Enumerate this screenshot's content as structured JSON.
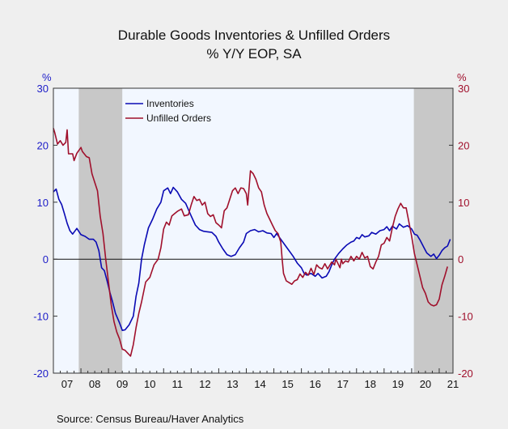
{
  "chart_data": {
    "type": "line",
    "title": "Durable Goods Inventories & Unfilled Orders",
    "subtitle": "% Y/Y   EOP, SA",
    "left_axis_unit": "%",
    "right_axis_unit": "%",
    "ylim": [
      -20,
      30
    ],
    "yticks": [
      30,
      20,
      10,
      0,
      -10,
      -20
    ],
    "xlim": [
      2007.0,
      2021.5
    ],
    "xtick_labels": [
      "07",
      "08",
      "09",
      "10",
      "11",
      "12",
      "13",
      "14",
      "15",
      "16",
      "17",
      "18",
      "19",
      "20",
      "21"
    ],
    "recessions": [
      [
        2007.92,
        2009.5
      ],
      [
        2020.08,
        2021.5
      ]
    ],
    "legend": {
      "position": "top-left",
      "entries": [
        "Inventories",
        "Unfilled Orders"
      ]
    },
    "source": "Source:  Census Bureau/Haver Analytics",
    "colors": {
      "Inventories": "#0a0ab4",
      "Unfilled Orders": "#a0102c",
      "recession": "#c8c8c8",
      "plot_bg": "#f2f7ff"
    },
    "series": [
      {
        "name": "Inventories",
        "points": [
          [
            2007.0,
            11.8
          ],
          [
            2007.1,
            12.3
          ],
          [
            2007.2,
            10.5
          ],
          [
            2007.3,
            9.6
          ],
          [
            2007.4,
            8.0
          ],
          [
            2007.5,
            6.3
          ],
          [
            2007.6,
            5.0
          ],
          [
            2007.7,
            4.4
          ],
          [
            2007.85,
            5.4
          ],
          [
            2008.0,
            4.3
          ],
          [
            2008.15,
            4.0
          ],
          [
            2008.3,
            3.5
          ],
          [
            2008.45,
            3.5
          ],
          [
            2008.55,
            3.0
          ],
          [
            2008.65,
            1.5
          ],
          [
            2008.75,
            -1.5
          ],
          [
            2008.85,
            -2.0
          ],
          [
            2008.95,
            -3.8
          ],
          [
            2009.05,
            -5.8
          ],
          [
            2009.15,
            -7.5
          ],
          [
            2009.25,
            -9.5
          ],
          [
            2009.4,
            -11.2
          ],
          [
            2009.5,
            -12.5
          ],
          [
            2009.6,
            -12.4
          ],
          [
            2009.75,
            -11.5
          ],
          [
            2009.9,
            -10.0
          ],
          [
            2010.0,
            -6.5
          ],
          [
            2010.1,
            -4.2
          ],
          [
            2010.2,
            0.0
          ],
          [
            2010.3,
            2.5
          ],
          [
            2010.45,
            5.5
          ],
          [
            2010.6,
            7.0
          ],
          [
            2010.75,
            8.8
          ],
          [
            2010.9,
            10.0
          ],
          [
            2011.0,
            12.0
          ],
          [
            2011.15,
            12.5
          ],
          [
            2011.25,
            11.5
          ],
          [
            2011.35,
            12.6
          ],
          [
            2011.5,
            11.8
          ],
          [
            2011.65,
            10.5
          ],
          [
            2011.8,
            9.8
          ],
          [
            2012.0,
            7.6
          ],
          [
            2012.15,
            6.0
          ],
          [
            2012.3,
            5.2
          ],
          [
            2012.45,
            4.9
          ],
          [
            2012.6,
            4.8
          ],
          [
            2012.75,
            4.7
          ],
          [
            2012.9,
            4.0
          ],
          [
            2013.0,
            3.0
          ],
          [
            2013.15,
            1.8
          ],
          [
            2013.3,
            0.8
          ],
          [
            2013.45,
            0.5
          ],
          [
            2013.6,
            0.8
          ],
          [
            2013.75,
            2.0
          ],
          [
            2013.9,
            3.0
          ],
          [
            2014.0,
            4.5
          ],
          [
            2014.15,
            5.0
          ],
          [
            2014.3,
            5.2
          ],
          [
            2014.45,
            4.8
          ],
          [
            2014.6,
            5.0
          ],
          [
            2014.75,
            4.6
          ],
          [
            2014.9,
            4.5
          ],
          [
            2015.0,
            3.8
          ],
          [
            2015.1,
            4.5
          ],
          [
            2015.25,
            3.5
          ],
          [
            2015.4,
            2.5
          ],
          [
            2015.55,
            1.5
          ],
          [
            2015.7,
            0.5
          ],
          [
            2015.85,
            -0.7
          ],
          [
            2016.0,
            -1.5
          ],
          [
            2016.1,
            -2.5
          ],
          [
            2016.2,
            -2.8
          ],
          [
            2016.35,
            -2.5
          ],
          [
            2016.5,
            -3.0
          ],
          [
            2016.6,
            -2.5
          ],
          [
            2016.75,
            -3.3
          ],
          [
            2016.9,
            -3.0
          ],
          [
            2017.0,
            -2.2
          ],
          [
            2017.1,
            -1.0
          ],
          [
            2017.2,
            0.0
          ],
          [
            2017.35,
            1.0
          ],
          [
            2017.5,
            1.8
          ],
          [
            2017.65,
            2.5
          ],
          [
            2017.8,
            3.0
          ],
          [
            2017.9,
            3.2
          ],
          [
            2018.0,
            3.8
          ],
          [
            2018.1,
            3.6
          ],
          [
            2018.2,
            4.3
          ],
          [
            2018.3,
            3.9
          ],
          [
            2018.45,
            4.1
          ],
          [
            2018.55,
            4.7
          ],
          [
            2018.7,
            4.4
          ],
          [
            2018.85,
            5.0
          ],
          [
            2019.0,
            5.2
          ],
          [
            2019.1,
            5.7
          ],
          [
            2019.2,
            5.0
          ],
          [
            2019.3,
            5.8
          ],
          [
            2019.45,
            5.3
          ],
          [
            2019.55,
            6.2
          ],
          [
            2019.7,
            5.6
          ],
          [
            2019.85,
            5.9
          ],
          [
            2020.0,
            5.3
          ],
          [
            2020.1,
            4.4
          ],
          [
            2020.2,
            4.2
          ],
          [
            2020.3,
            3.4
          ],
          [
            2020.45,
            2.0
          ],
          [
            2020.55,
            1.1
          ],
          [
            2020.7,
            0.5
          ],
          [
            2020.8,
            0.9
          ],
          [
            2020.9,
            0.1
          ],
          [
            2021.0,
            0.7
          ],
          [
            2021.1,
            1.5
          ],
          [
            2021.2,
            2.0
          ],
          [
            2021.3,
            2.3
          ],
          [
            2021.4,
            3.5
          ]
        ]
      },
      {
        "name": "Unfilled Orders",
        "points": [
          [
            2007.0,
            23.0
          ],
          [
            2007.05,
            22.2
          ],
          [
            2007.15,
            20.2
          ],
          [
            2007.25,
            20.8
          ],
          [
            2007.35,
            20.0
          ],
          [
            2007.45,
            20.5
          ],
          [
            2007.5,
            22.7
          ],
          [
            2007.55,
            18.5
          ],
          [
            2007.7,
            18.5
          ],
          [
            2007.75,
            17.3
          ],
          [
            2007.85,
            18.6
          ],
          [
            2008.0,
            19.6
          ],
          [
            2008.05,
            18.9
          ],
          [
            2008.2,
            18.0
          ],
          [
            2008.3,
            17.8
          ],
          [
            2008.4,
            15.0
          ],
          [
            2008.5,
            13.5
          ],
          [
            2008.6,
            12.0
          ],
          [
            2008.7,
            7.5
          ],
          [
            2008.8,
            4.5
          ],
          [
            2008.9,
            0.0
          ],
          [
            2009.0,
            -4.0
          ],
          [
            2009.1,
            -8.0
          ],
          [
            2009.2,
            -11.0
          ],
          [
            2009.3,
            -12.8
          ],
          [
            2009.4,
            -14.0
          ],
          [
            2009.5,
            -15.8
          ],
          [
            2009.6,
            -16.0
          ],
          [
            2009.7,
            -16.5
          ],
          [
            2009.8,
            -17.0
          ],
          [
            2009.9,
            -15.0
          ],
          [
            2010.0,
            -12.0
          ],
          [
            2010.1,
            -9.5
          ],
          [
            2010.2,
            -7.5
          ],
          [
            2010.35,
            -4.0
          ],
          [
            2010.5,
            -3.2
          ],
          [
            2010.65,
            -1.0
          ],
          [
            2010.8,
            0.0
          ],
          [
            2010.9,
            2.0
          ],
          [
            2011.0,
            5.3
          ],
          [
            2011.1,
            6.5
          ],
          [
            2011.2,
            6.0
          ],
          [
            2011.3,
            7.6
          ],
          [
            2011.4,
            8.0
          ],
          [
            2011.5,
            8.4
          ],
          [
            2011.65,
            8.8
          ],
          [
            2011.75,
            7.6
          ],
          [
            2011.9,
            7.8
          ],
          [
            2012.0,
            9.5
          ],
          [
            2012.1,
            11.0
          ],
          [
            2012.2,
            10.3
          ],
          [
            2012.3,
            10.5
          ],
          [
            2012.4,
            9.5
          ],
          [
            2012.5,
            10.0
          ],
          [
            2012.6,
            8.0
          ],
          [
            2012.7,
            7.5
          ],
          [
            2012.8,
            7.8
          ],
          [
            2012.9,
            6.4
          ],
          [
            2013.0,
            6.0
          ],
          [
            2013.1,
            5.5
          ],
          [
            2013.2,
            8.5
          ],
          [
            2013.3,
            9.0
          ],
          [
            2013.4,
            10.5
          ],
          [
            2013.5,
            12.0
          ],
          [
            2013.6,
            12.5
          ],
          [
            2013.7,
            11.5
          ],
          [
            2013.8,
            12.5
          ],
          [
            2013.9,
            12.4
          ],
          [
            2014.0,
            11.5
          ],
          [
            2014.05,
            9.5
          ],
          [
            2014.15,
            15.5
          ],
          [
            2014.25,
            15.0
          ],
          [
            2014.35,
            14.0
          ],
          [
            2014.45,
            12.5
          ],
          [
            2014.55,
            11.8
          ],
          [
            2014.65,
            9.5
          ],
          [
            2014.75,
            8.0
          ],
          [
            2014.85,
            7.0
          ],
          [
            2014.95,
            6.0
          ],
          [
            2015.05,
            5.0
          ],
          [
            2015.15,
            4.5
          ],
          [
            2015.25,
            3.0
          ],
          [
            2015.3,
            0.0
          ],
          [
            2015.35,
            -2.5
          ],
          [
            2015.45,
            -3.8
          ],
          [
            2015.55,
            -4.1
          ],
          [
            2015.65,
            -4.4
          ],
          [
            2015.75,
            -3.8
          ],
          [
            2015.85,
            -3.6
          ],
          [
            2015.95,
            -2.6
          ],
          [
            2016.05,
            -3.2
          ],
          [
            2016.15,
            -2.3
          ],
          [
            2016.25,
            -2.8
          ],
          [
            2016.35,
            -1.6
          ],
          [
            2016.45,
            -2.7
          ],
          [
            2016.55,
            -1.0
          ],
          [
            2016.65,
            -1.5
          ],
          [
            2016.75,
            -1.7
          ],
          [
            2016.85,
            -0.8
          ],
          [
            2016.95,
            -1.7
          ],
          [
            2017.1,
            -0.5
          ],
          [
            2017.2,
            -1.0
          ],
          [
            2017.25,
            0.0
          ],
          [
            2017.3,
            -0.5
          ],
          [
            2017.4,
            -1.5
          ],
          [
            2017.45,
            0.0
          ],
          [
            2017.5,
            -0.8
          ],
          [
            2017.6,
            -0.3
          ],
          [
            2017.7,
            -0.5
          ],
          [
            2017.8,
            0.5
          ],
          [
            2017.9,
            -0.3
          ],
          [
            2018.0,
            0.5
          ],
          [
            2018.1,
            0.0
          ],
          [
            2018.2,
            1.2
          ],
          [
            2018.3,
            0.2
          ],
          [
            2018.4,
            0.5
          ],
          [
            2018.5,
            -1.3
          ],
          [
            2018.6,
            -1.7
          ],
          [
            2018.7,
            -0.5
          ],
          [
            2018.8,
            0.5
          ],
          [
            2018.9,
            2.5
          ],
          [
            2019.0,
            2.8
          ],
          [
            2019.1,
            3.8
          ],
          [
            2019.2,
            3.2
          ],
          [
            2019.3,
            5.5
          ],
          [
            2019.4,
            7.5
          ],
          [
            2019.5,
            8.8
          ],
          [
            2019.6,
            9.8
          ],
          [
            2019.7,
            9.0
          ],
          [
            2019.8,
            9.0
          ],
          [
            2019.9,
            6.5
          ],
          [
            2020.0,
            4.0
          ],
          [
            2020.1,
            1.0
          ],
          [
            2020.2,
            -1.0
          ],
          [
            2020.3,
            -3.0
          ],
          [
            2020.4,
            -5.0
          ],
          [
            2020.5,
            -6.0
          ],
          [
            2020.6,
            -7.5
          ],
          [
            2020.7,
            -8.0
          ],
          [
            2020.8,
            -8.2
          ],
          [
            2020.9,
            -8.0
          ],
          [
            2021.0,
            -7.0
          ],
          [
            2021.1,
            -4.5
          ],
          [
            2021.2,
            -3.0
          ],
          [
            2021.3,
            -1.3
          ]
        ]
      }
    ]
  }
}
